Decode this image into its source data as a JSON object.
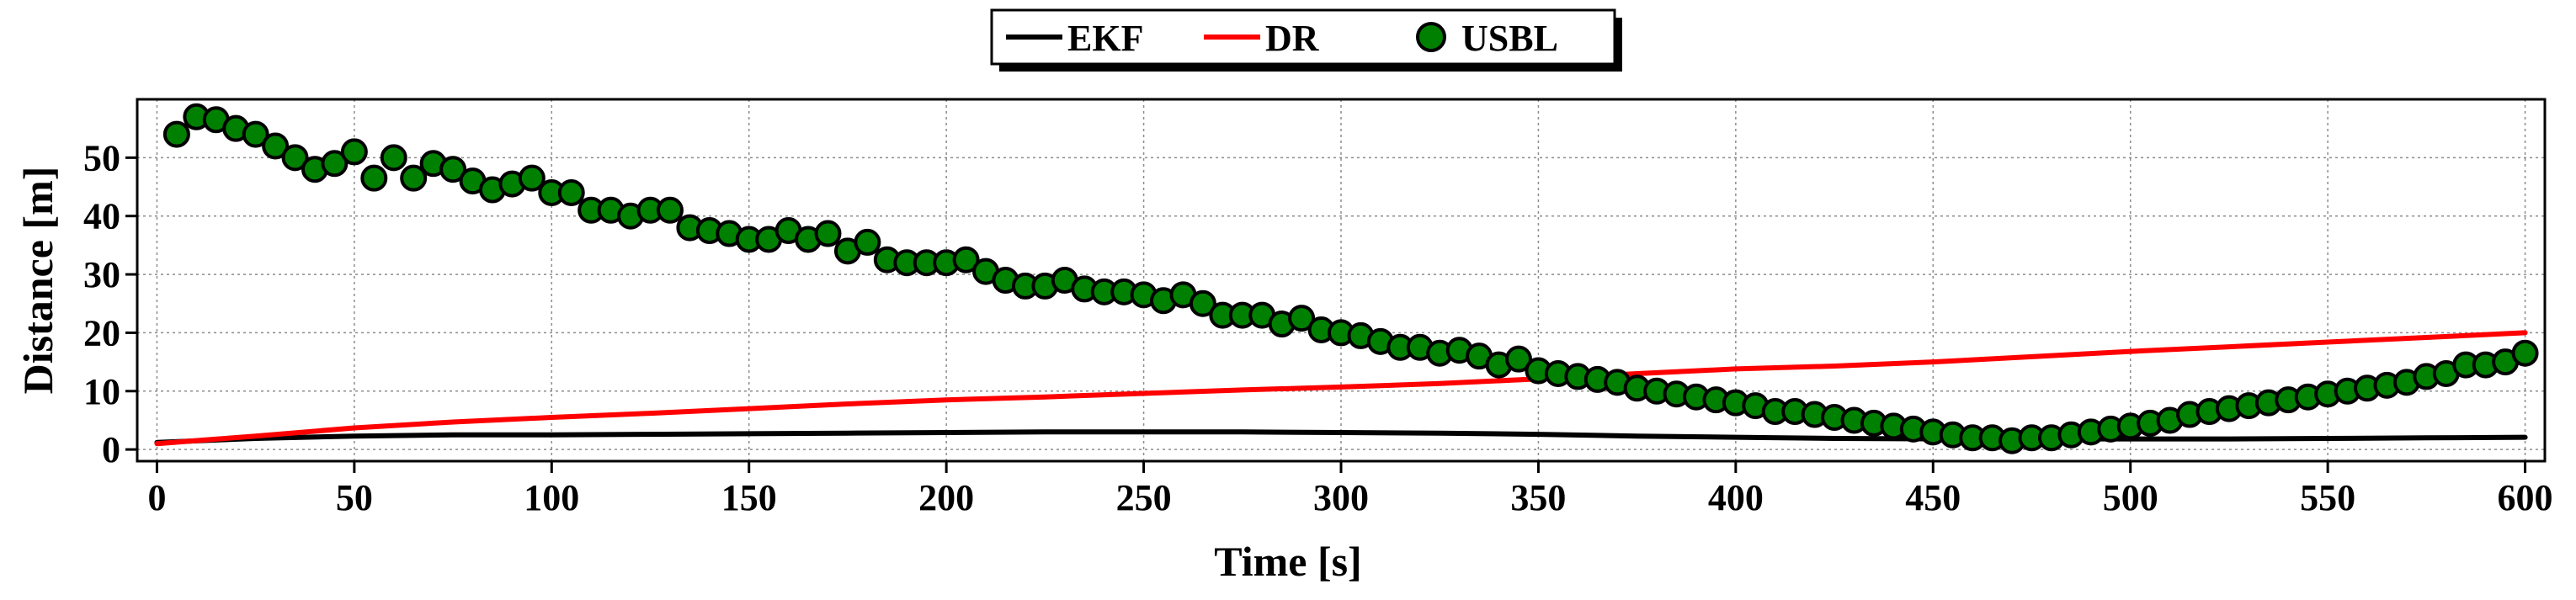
{
  "chart_data": {
    "type": "line",
    "xlabel": "Time [s]",
    "ylabel": "Distance [m]",
    "xlim": [
      -5,
      605
    ],
    "ylim": [
      -2,
      60
    ],
    "xticks": [
      0,
      50,
      100,
      150,
      200,
      250,
      300,
      350,
      400,
      450,
      500,
      550,
      600
    ],
    "yticks": [
      0,
      10,
      20,
      30,
      40,
      50
    ],
    "grid": true,
    "legend_position": "top-center",
    "series": [
      {
        "name": "EKF",
        "style": "line",
        "color": "#000000",
        "x": [
          0,
          25,
          50,
          75,
          100,
          125,
          150,
          175,
          200,
          225,
          250,
          275,
          300,
          325,
          350,
          375,
          400,
          425,
          450,
          475,
          500,
          525,
          550,
          575,
          600
        ],
        "y": [
          1.2,
          1.9,
          2.3,
          2.5,
          2.5,
          2.6,
          2.7,
          2.8,
          2.9,
          3.0,
          3.0,
          3.0,
          2.9,
          2.8,
          2.6,
          2.3,
          2.1,
          1.9,
          1.8,
          1.8,
          1.8,
          1.8,
          1.9,
          2.0,
          2.1
        ]
      },
      {
        "name": "DR",
        "style": "line",
        "color": "#ff0000",
        "x": [
          0,
          25,
          50,
          75,
          100,
          125,
          150,
          175,
          200,
          225,
          250,
          275,
          300,
          325,
          350,
          375,
          400,
          425,
          450,
          475,
          500,
          525,
          550,
          575,
          600
        ],
        "y": [
          1.0,
          2.3,
          3.7,
          4.7,
          5.5,
          6.2,
          7.0,
          7.8,
          8.5,
          9.0,
          9.6,
          10.2,
          10.7,
          11.3,
          12.1,
          13.0,
          13.8,
          14.3,
          15.0,
          15.9,
          16.8,
          17.6,
          18.4,
          19.2,
          20.0
        ]
      },
      {
        "name": "USBL",
        "style": "markers",
        "color": "#008000",
        "edge_color": "#000000",
        "x": [
          5,
          10,
          15,
          20,
          25,
          30,
          35,
          40,
          45,
          50,
          55,
          60,
          65,
          70,
          75,
          80,
          85,
          90,
          95,
          100,
          105,
          110,
          115,
          120,
          125,
          130,
          135,
          140,
          145,
          150,
          155,
          160,
          165,
          170,
          175,
          180,
          185,
          190,
          195,
          200,
          205,
          210,
          215,
          220,
          225,
          230,
          235,
          240,
          245,
          250,
          255,
          260,
          265,
          270,
          275,
          280,
          285,
          290,
          295,
          300,
          305,
          310,
          315,
          320,
          325,
          330,
          335,
          340,
          345,
          350,
          355,
          360,
          365,
          370,
          375,
          380,
          385,
          390,
          395,
          400,
          405,
          410,
          415,
          420,
          425,
          430,
          435,
          440,
          445,
          450,
          455,
          460,
          465,
          470,
          475,
          480,
          485,
          490,
          495,
          500,
          505,
          510,
          515,
          520,
          525,
          530,
          535,
          540,
          545,
          550,
          555,
          560,
          565,
          570,
          575,
          580,
          585,
          590,
          595,
          600
        ],
        "y": [
          54.0,
          57.0,
          56.5,
          55.0,
          54.0,
          52.0,
          50.0,
          48.0,
          49.0,
          51.0,
          46.5,
          50.0,
          46.5,
          49.0,
          48.0,
          46.0,
          44.5,
          45.5,
          46.5,
          44.0,
          44.0,
          41.0,
          41.0,
          40.0,
          41.0,
          41.0,
          38.0,
          37.5,
          37.0,
          36.0,
          36.0,
          37.5,
          36.0,
          37.0,
          34.0,
          35.5,
          32.5,
          32.0,
          32.0,
          32.0,
          32.5,
          30.5,
          29.0,
          28.0,
          28.0,
          29.0,
          27.5,
          27.0,
          27.0,
          26.5,
          25.5,
          26.5,
          25.0,
          23.0,
          23.0,
          23.0,
          21.5,
          22.5,
          20.5,
          20.0,
          19.5,
          18.5,
          17.5,
          17.5,
          16.5,
          17.0,
          16.0,
          14.5,
          15.5,
          13.5,
          13.0,
          12.5,
          12.0,
          11.5,
          10.5,
          10.0,
          9.5,
          9.0,
          8.5,
          8.0,
          7.5,
          6.5,
          6.5,
          6.0,
          5.5,
          5.0,
          4.5,
          4.0,
          3.5,
          3.0,
          2.5,
          2.0,
          2.0,
          1.5,
          2.0,
          2.0,
          2.5,
          3.0,
          3.5,
          4.0,
          4.5,
          5.0,
          6.0,
          6.5,
          7.0,
          7.5,
          8.0,
          8.5,
          9.0,
          9.5,
          10.0,
          10.5,
          11.0,
          11.5,
          12.5,
          13.0,
          14.5,
          14.5,
          15.0,
          16.5
        ]
      }
    ]
  }
}
